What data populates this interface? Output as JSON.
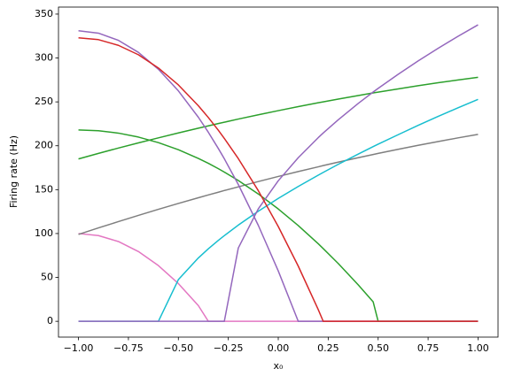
{
  "chart_data": {
    "type": "line",
    "xlabel": "x₀",
    "ylabel": "Firing rate (Hz)",
    "x": [
      -1,
      -0.9,
      -0.8,
      -0.7,
      -0.6,
      -0.5,
      -0.4,
      -0.35,
      -0.3,
      -0.27,
      -0.2,
      -0.1,
      0,
      0.1,
      0.2,
      0.225,
      0.3,
      0.4,
      0.475,
      0.5,
      0.6,
      0.7,
      0.8,
      0.9,
      1
    ],
    "series": [
      {
        "color": "#e377c2",
        "values": [
          100,
          97.7,
          90.9,
          79.5,
          63.5,
          43,
          17.9,
          0,
          0,
          0,
          0,
          0,
          0,
          0,
          0,
          0,
          0,
          0,
          0,
          0,
          0,
          0,
          0,
          0,
          0
        ]
      },
      {
        "color": "#7f7f7f",
        "values": [
          99,
          106.4,
          113.6,
          120.7,
          127.6,
          134.3,
          140.8,
          144.0,
          147.1,
          149.0,
          153.2,
          159.2,
          165,
          170.6,
          176.0,
          177.4,
          181.3,
          186.4,
          190.0,
          191.3,
          196.0,
          200.5,
          204.8,
          209.0,
          213
        ]
      },
      {
        "color": "#2ca02c",
        "values": [
          185,
          191.3,
          197.4,
          203.3,
          209.0,
          214.6,
          220.0,
          222.7,
          225.3,
          226.8,
          230.4,
          235.3,
          240,
          244.6,
          249.0,
          250.0,
          253.2,
          257.2,
          260.2,
          261.1,
          264.8,
          268.4,
          271.8,
          275.0,
          278
        ]
      },
      {
        "color": "#2ca02c",
        "values": [
          218,
          217.1,
          214.4,
          209.9,
          203.6,
          195.5,
          185.6,
          180.0,
          173.9,
          170.0,
          160.4,
          145.1,
          128,
          109.1,
          88.4,
          82.9,
          65.9,
          41.6,
          22.2,
          0,
          0,
          0,
          0,
          0,
          0
        ]
      },
      {
        "color": "#17becf",
        "values": [
          0,
          0,
          0,
          0,
          0,
          47.5,
          72.2,
          82.6,
          92.2,
          97.6,
          109.6,
          125.4,
          140.0,
          153.6,
          166.5,
          169.6,
          178.8,
          190.5,
          199.0,
          201.8,
          212.6,
          223.2,
          233.4,
          243.3,
          252.9
        ]
      },
      {
        "color": "#9467bd",
        "values": [
          0,
          0,
          0,
          0,
          0,
          0,
          0,
          0,
          0,
          0,
          83.5,
          128.1,
          160.1,
          186.4,
          209.2,
          214.5,
          229.5,
          248.2,
          261.2,
          265.4,
          281.4,
          296.6,
          311.0,
          324.7,
          337.8
        ]
      },
      {
        "color": "#9467bd",
        "values": [
          331,
          328.3,
          320.1,
          306.4,
          287.2,
          262.6,
          232.5,
          215.4,
          196.9,
          185.2,
          155.9,
          109.4,
          57.4,
          0,
          0,
          0,
          0,
          0,
          0,
          0,
          0,
          0,
          0,
          0,
          0
        ]
      },
      {
        "color": "#d62728",
        "values": [
          323,
          320.9,
          314.4,
          303.7,
          288.6,
          269.3,
          245.6,
          232.2,
          217.7,
          208.4,
          185.4,
          148.9,
          108,
          62.9,
          13.4,
          0,
          0,
          0,
          0,
          0,
          0,
          0,
          0,
          0,
          0
        ]
      }
    ],
    "xlim": [
      -1.1,
      1.1
    ],
    "xticks": [
      {
        "value": -1,
        "label": "−1.00"
      },
      {
        "value": -0.75,
        "label": "−0.75"
      },
      {
        "value": -0.5,
        "label": "−0.50"
      },
      {
        "value": -0.25,
        "label": "−0.25"
      },
      {
        "value": 0,
        "label": "0.00"
      },
      {
        "value": 0.25,
        "label": "0.25"
      },
      {
        "value": 0.5,
        "label": "0.50"
      },
      {
        "value": 0.75,
        "label": "0.75"
      },
      {
        "value": 1,
        "label": "1.00"
      }
    ],
    "ylim": [
      -18,
      358
    ],
    "yticks": [
      0,
      50,
      100,
      150,
      200,
      250,
      300,
      350
    ]
  }
}
